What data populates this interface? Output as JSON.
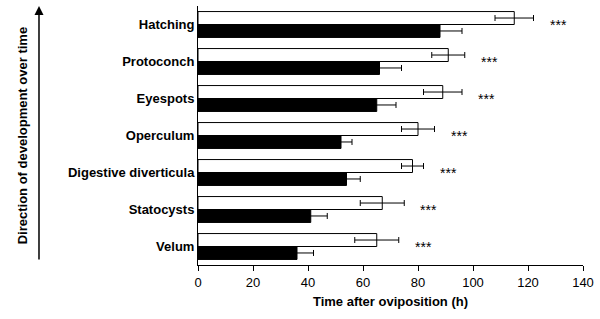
{
  "chart_data": {
    "type": "bar",
    "orientation": "horizontal",
    "xlabel": "Time after oviposition (h)",
    "ylabel": "Direction of development over time",
    "categories": [
      "Velum",
      "Statocysts",
      "Digestive diverticula",
      "Operculum",
      "Eyespots",
      "Protoconch",
      "Hatching"
    ],
    "series": [
      {
        "color": "#000000",
        "values": [
          36,
          41,
          54,
          52,
          65,
          66,
          88
        ],
        "errors": [
          6,
          6,
          5,
          4,
          7,
          8,
          8
        ]
      },
      {
        "color": "#ffffff",
        "values": [
          65,
          67,
          78,
          80,
          89,
          91,
          115
        ],
        "errors": [
          8,
          8,
          4,
          6,
          7,
          6,
          7
        ]
      }
    ],
    "xlim": [
      0,
      140
    ],
    "xticks": [
      0,
      20,
      40,
      60,
      80,
      100,
      120,
      140
    ],
    "grid": false,
    "annotations": [
      {
        "category": "Velum",
        "text": "***"
      },
      {
        "category": "Statocysts",
        "text": "***"
      },
      {
        "category": "Digestive diverticula",
        "text": "***"
      },
      {
        "category": "Operculum",
        "text": "***"
      },
      {
        "category": "Eyespots",
        "text": "***"
      },
      {
        "category": "Protoconch",
        "text": "***"
      },
      {
        "category": "Hatching",
        "text": "***"
      }
    ]
  }
}
